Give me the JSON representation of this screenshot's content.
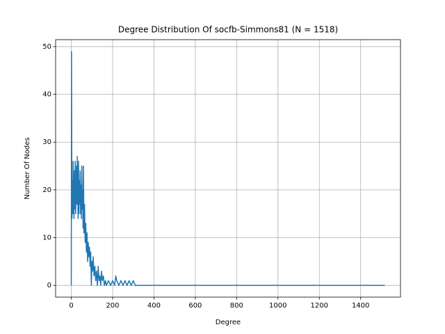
{
  "chart_data": {
    "type": "line",
    "title": "Degree Distribution Of socfb-Simmons81 (N = 1518)",
    "x_label": "Degree",
    "y_label": "Number Of Nodes",
    "x": [
      0,
      1,
      3,
      5,
      7,
      9,
      11,
      13,
      15,
      17,
      19,
      21,
      23,
      25,
      27,
      29,
      31,
      33,
      35,
      37,
      39,
      41,
      43,
      45,
      47,
      49,
      51,
      53,
      55,
      57,
      59,
      61,
      64,
      67,
      70,
      73,
      76,
      79,
      82,
      85,
      88,
      91,
      94,
      97,
      100,
      103,
      106,
      110,
      114,
      118,
      122,
      126,
      130,
      134,
      138,
      142,
      146,
      150,
      155,
      160,
      165,
      170,
      180,
      190,
      200,
      210,
      215,
      220,
      230,
      240,
      250,
      260,
      270,
      280,
      290,
      300,
      310,
      1517
    ],
    "values": [
      0,
      49,
      14,
      22,
      15,
      26,
      18,
      14,
      24,
      16,
      26,
      15,
      20,
      25,
      17,
      27,
      19,
      14,
      26,
      15,
      22,
      17,
      24,
      15,
      21,
      14,
      25,
      16,
      20,
      12,
      25,
      11,
      17,
      9,
      13,
      7,
      11,
      5,
      9,
      6,
      8,
      4,
      7,
      0,
      5,
      3,
      6,
      2,
      4,
      1,
      3,
      0,
      4,
      1,
      2,
      0,
      3,
      1,
      2,
      0,
      1,
      0,
      1,
      0,
      1,
      0,
      2,
      1,
      0,
      1,
      0,
      1,
      0,
      1,
      0,
      1,
      0,
      0
    ],
    "color": "#1f77b4",
    "xlim": [
      -75.85,
      1592.85
    ],
    "xticks": [
      0,
      200,
      400,
      600,
      800,
      1000,
      1200,
      1400
    ],
    "ylim": [
      -2.45,
      51.45
    ],
    "yticks": [
      0,
      10,
      20,
      30,
      40,
      50
    ],
    "grid": true
  }
}
